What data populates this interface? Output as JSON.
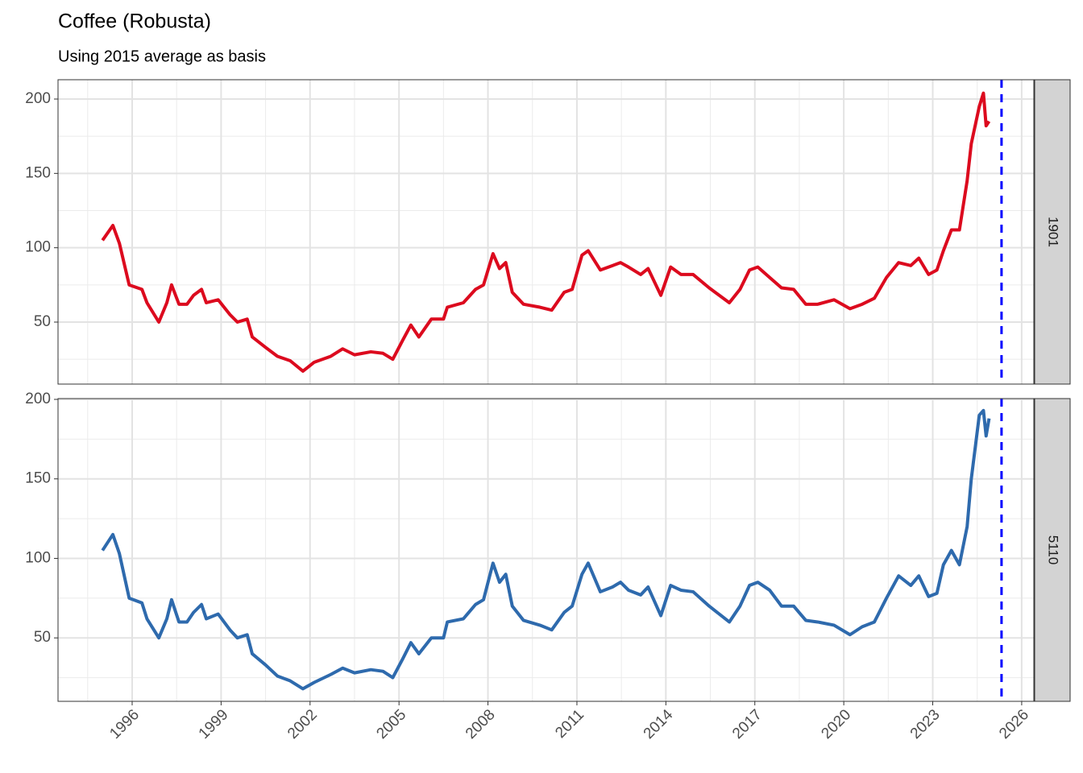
{
  "chart_data": [
    {
      "type": "line",
      "title": "Coffee (Robusta)",
      "subtitle": "Using 2015 average as basis",
      "x": [
        1995.0,
        1995.35,
        1995.57,
        1995.9,
        1996.33,
        1996.5,
        1996.9,
        1997.17,
        1997.33,
        1997.58,
        1997.85,
        1998.07,
        1998.34,
        1998.5,
        1998.9,
        1999.3,
        1999.55,
        1999.88,
        2000.05,
        2000.5,
        2000.9,
        2001.33,
        2001.76,
        2002.14,
        2002.7,
        2003.1,
        2003.5,
        2004.05,
        2004.46,
        2004.79,
        2005.13,
        2005.4,
        2005.67,
        2006.09,
        2006.5,
        2006.63,
        2007.17,
        2007.58,
        2007.85,
        2008.17,
        2008.39,
        2008.6,
        2008.82,
        2009.2,
        2009.75,
        2010.15,
        2010.57,
        2010.84,
        2011.17,
        2011.38,
        2011.79,
        2012.2,
        2012.47,
        2012.74,
        2013.15,
        2013.4,
        2013.83,
        2014.16,
        2014.51,
        2014.92,
        2015.46,
        2016.14,
        2016.5,
        2016.82,
        2017.1,
        2017.5,
        2017.9,
        2018.31,
        2018.72,
        2019.12,
        2019.67,
        2020.21,
        2020.62,
        2021.03,
        2021.44,
        2021.85,
        2022.26,
        2022.53,
        2022.86,
        2023.14,
        2023.36,
        2023.63,
        2023.9,
        2024.16,
        2024.3,
        2024.57,
        2024.71,
        2024.8,
        2024.9
      ],
      "series": [
        {
          "name": "1901",
          "color": "#dc0a1e",
          "values": [
            105,
            115,
            103,
            75,
            72,
            63,
            50,
            63,
            75,
            62,
            62,
            68,
            72,
            63,
            65,
            55,
            50,
            52,
            40,
            33,
            27,
            24,
            17,
            23,
            27,
            32,
            28,
            30,
            29,
            25,
            38,
            48,
            40,
            52,
            52,
            60,
            63,
            72,
            75,
            96,
            86,
            90,
            70,
            62,
            60,
            58,
            70,
            72,
            95,
            98,
            85,
            88,
            90,
            87,
            82,
            86,
            68,
            87,
            82,
            82,
            73,
            63,
            72,
            85,
            87,
            80,
            73,
            72,
            62,
            62,
            65,
            59,
            62,
            66,
            80,
            90,
            88,
            93,
            82,
            85,
            98,
            112,
            112,
            145,
            170,
            195,
            204,
            182,
            185
          ]
        }
      ],
      "xlim": [
        1993.5,
        2026.41
      ],
      "ylim": [
        8.3,
        213
      ],
      "xticks": [
        1996,
        1999,
        2002,
        2005,
        2008,
        2011,
        2014,
        2017,
        2020,
        2023,
        2026
      ],
      "yticks": [
        50,
        100,
        150,
        200
      ],
      "grid": true,
      "vline": {
        "x": 2025.32,
        "color": "#0000ff"
      }
    },
    {
      "type": "line",
      "x": [
        1995.0,
        1995.35,
        1995.57,
        1995.9,
        1996.33,
        1996.5,
        1996.9,
        1997.17,
        1997.33,
        1997.58,
        1997.85,
        1998.07,
        1998.34,
        1998.5,
        1998.9,
        1999.3,
        1999.55,
        1999.88,
        2000.05,
        2000.5,
        2000.9,
        2001.33,
        2001.76,
        2002.14,
        2002.7,
        2003.1,
        2003.5,
        2004.05,
        2004.46,
        2004.79,
        2005.13,
        2005.4,
        2005.67,
        2006.09,
        2006.5,
        2006.63,
        2007.17,
        2007.58,
        2007.85,
        2008.17,
        2008.39,
        2008.6,
        2008.82,
        2009.2,
        2009.75,
        2010.15,
        2010.57,
        2010.84,
        2011.17,
        2011.38,
        2011.79,
        2012.2,
        2012.47,
        2012.74,
        2013.15,
        2013.4,
        2013.83,
        2014.16,
        2014.51,
        2014.92,
        2015.46,
        2016.14,
        2016.5,
        2016.82,
        2017.1,
        2017.5,
        2017.9,
        2018.31,
        2018.72,
        2019.12,
        2019.67,
        2020.21,
        2020.62,
        2021.03,
        2021.44,
        2021.85,
        2022.26,
        2022.53,
        2022.86,
        2023.14,
        2023.36,
        2023.63,
        2023.9,
        2024.16,
        2024.3,
        2024.57,
        2024.71,
        2024.8,
        2024.9
      ],
      "series": [
        {
          "name": "5110",
          "color": "#2e6aad",
          "values": [
            105,
            115,
            103,
            75,
            72,
            62,
            50,
            62,
            74,
            60,
            60,
            66,
            71,
            62,
            65,
            55,
            50,
            52,
            40,
            33,
            26,
            23,
            18,
            22,
            27,
            31,
            28,
            30,
            29,
            25,
            37,
            47,
            40,
            50,
            50,
            60,
            62,
            71,
            74,
            97,
            85,
            90,
            70,
            61,
            58,
            55,
            66,
            70,
            90,
            97,
            79,
            82,
            85,
            80,
            77,
            82,
            64,
            83,
            80,
            79,
            70,
            60,
            70,
            83,
            85,
            80,
            70,
            70,
            61,
            60,
            58,
            52,
            57,
            60,
            75,
            89,
            83,
            89,
            76,
            78,
            96,
            105,
            96,
            120,
            150,
            190,
            193,
            177,
            188
          ]
        }
      ],
      "xlim": [
        1993.5,
        2026.41
      ],
      "ylim": [
        10.1,
        200.5
      ],
      "xticks": [
        1996,
        1999,
        2002,
        2005,
        2008,
        2011,
        2014,
        2017,
        2020,
        2023,
        2026
      ],
      "yticks": [
        50,
        100,
        150,
        200
      ],
      "grid": true,
      "vline": {
        "x": 2025.32,
        "color": "#0000ff"
      }
    }
  ]
}
